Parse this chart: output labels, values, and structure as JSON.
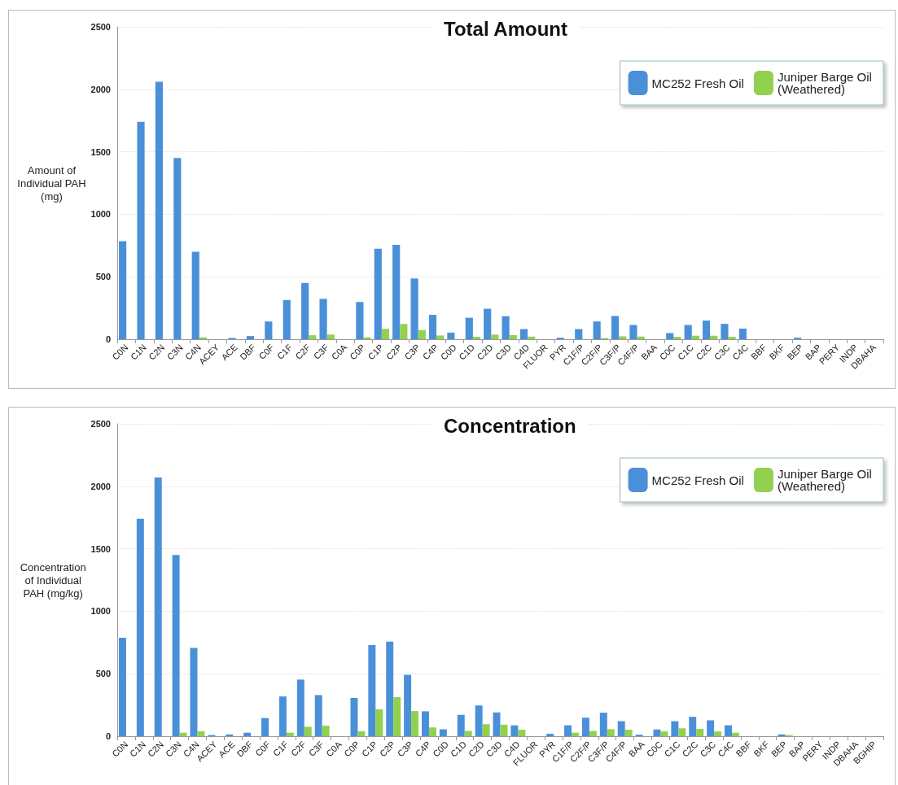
{
  "chart_data": [
    {
      "type": "bar",
      "title": "Total Amount",
      "ylabel": "Amount of Individual PAH (mg)",
      "categories": [
        "C0N",
        "C1N",
        "C2N",
        "C3N",
        "C4N",
        "ACEY",
        "ACE",
        "DBF",
        "C0F",
        "C1F",
        "C2F",
        "C3F",
        "C0A",
        "C0P",
        "C1P",
        "C2P",
        "C3P",
        "C4P",
        "C0D",
        "C1D",
        "C2D",
        "C3D",
        "C4D",
        "FLUOR",
        "PYR",
        "C1F/P",
        "C2F/P",
        "C3F/P",
        "C4F/P",
        "BAA",
        "C0C",
        "C1C",
        "C2C",
        "C3C",
        "C4C",
        "BBF",
        "BKF",
        "BEP",
        "BAP",
        "PERY",
        "INDP",
        "DBAHA"
      ],
      "series": [
        {
          "name": "MC252 Fresh Oil",
          "color": "#4a90d9",
          "values": [
            785,
            1740,
            2060,
            1450,
            700,
            0,
            10,
            25,
            142,
            314,
            450,
            323,
            0,
            298,
            725,
            755,
            486,
            195,
            53,
            172,
            244,
            184,
            81,
            0,
            12,
            81,
            142,
            186,
            114,
            0,
            49,
            114,
            149,
            123,
            85,
            0,
            0,
            12,
            0,
            0,
            0,
            0
          ]
        },
        {
          "name": "Juniper Barge Oil (Weathered)",
          "color": "#92d050",
          "values": [
            0,
            0,
            0,
            0,
            15,
            0,
            0,
            0,
            0,
            0,
            32,
            37,
            0,
            15,
            83,
            122,
            73,
            30,
            0,
            19,
            37,
            33,
            21,
            0,
            0,
            0,
            9,
            23,
            21,
            0,
            19,
            28,
            28,
            19,
            0,
            0,
            0,
            0,
            0,
            0,
            0,
            0
          ]
        }
      ],
      "ylim": [
        0,
        2500
      ],
      "yticks": [
        0,
        500,
        1000,
        1500,
        2000,
        2500
      ],
      "grid": "y",
      "legend": "top right"
    },
    {
      "type": "bar",
      "title": "Concentration",
      "ylabel": "Concentration of Individual PAH (mg/kg)",
      "categories": [
        "C0N",
        "C1N",
        "C2N",
        "C3N",
        "C4N",
        "ACEY",
        "ACE",
        "DBF",
        "C0F",
        "C1F",
        "C2F",
        "C3F",
        "C0A",
        "C0P",
        "C1P",
        "C2P",
        "C3P",
        "C4P",
        "C0D",
        "C1D",
        "C2D",
        "C3D",
        "C4D",
        "FLUOR",
        "PYR",
        "C1F/P",
        "C2F/P",
        "C3F/P",
        "C4F/P",
        "BAA",
        "C0C",
        "C1C",
        "C2C",
        "C3C",
        "C4C",
        "BBF",
        "BKF",
        "BEP",
        "BAP",
        "PERY",
        "INDP",
        "DBAHA",
        "BGHIP"
      ],
      "series": [
        {
          "name": "MC252 Fresh Oil",
          "color": "#4a90d9",
          "values": [
            787,
            1740,
            2070,
            1450,
            706,
            9,
            14,
            28,
            145,
            318,
            453,
            329,
            0,
            306,
            729,
            757,
            491,
            199,
            55,
            171,
            246,
            190,
            87,
            0,
            19,
            87,
            148,
            188,
            120,
            12,
            54,
            120,
            155,
            127,
            87,
            0,
            0,
            14,
            0,
            0,
            0,
            0,
            0
          ]
        },
        {
          "name": "Juniper Barge Oil (Weathered)",
          "color": "#92d050",
          "values": [
            0,
            0,
            0,
            28,
            40,
            0,
            0,
            0,
            0,
            28,
            75,
            84,
            0,
            40,
            215,
            313,
            201,
            70,
            0,
            42,
            96,
            92,
            52,
            0,
            0,
            28,
            42,
            56,
            52,
            0,
            38,
            63,
            59,
            38,
            28,
            0,
            0,
            9,
            0,
            0,
            0,
            0,
            0
          ]
        }
      ],
      "ylim": [
        0,
        2500
      ],
      "yticks": [
        0,
        500,
        1000,
        1500,
        2000,
        2500
      ],
      "grid": "y",
      "legend": "top right"
    }
  ]
}
